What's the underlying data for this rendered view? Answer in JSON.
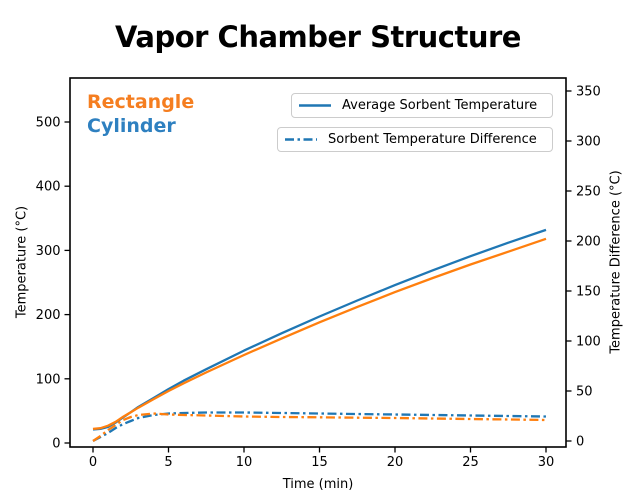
{
  "figure": {
    "background": "#ffffff"
  },
  "chart_data": {
    "type": "line",
    "title": "Vapor Chamber Structure",
    "xlabel": "Time (min)",
    "ylabel_left": "Temperature (°C)",
    "ylabel_right": "Temperature Difference (°C)",
    "x_ticks": [
      0,
      5,
      10,
      15,
      20,
      25,
      30
    ],
    "y_ticks_left": [
      0,
      100,
      200,
      300,
      400,
      500
    ],
    "y_ticks_right": [
      0,
      50,
      100,
      150,
      200,
      250,
      300,
      350
    ],
    "xlim": [
      -1.5,
      31.5
    ],
    "ylim_left": [
      -6,
      568
    ],
    "ylim_right": [
      -6,
      363
    ],
    "grid": false,
    "legend_position": "upper center",
    "legend": [
      "Average Sorbent Temperature",
      "Sorbent Temperature Difference"
    ],
    "legend_line_color": "#1f77b4",
    "annotations": [
      {
        "text": "Rectangle",
        "color": "#f57e20"
      },
      {
        "text": "Cylinder",
        "color": "#2e80c0"
      }
    ],
    "colors": {
      "cylinder": "#1f77b4",
      "rectangle": "#ff7f0e"
    },
    "x": [
      0,
      0.5,
      1,
      1.5,
      2,
      2.5,
      3,
      4,
      5,
      6,
      7.5,
      10,
      12.5,
      15,
      17.5,
      20,
      22.5,
      25,
      27.5,
      30
    ],
    "series": [
      {
        "name": "Cylinder Average Sorbent Temperature",
        "group": "Cylinder",
        "measure": "Average Sorbent Temperature",
        "axis": "left",
        "style": "solid",
        "color": "#1f77b4",
        "values": [
          21,
          22,
          25,
          32,
          40,
          48,
          56,
          70,
          84,
          97,
          115,
          144,
          171,
          197,
          222,
          246,
          269,
          291,
          312,
          332
        ]
      },
      {
        "name": "Rectangle Average Sorbent Temperature",
        "group": "Rectangle",
        "measure": "Average Sorbent Temperature",
        "axis": "left",
        "style": "solid",
        "color": "#ff7f0e",
        "values": [
          22,
          23,
          27,
          33,
          41,
          48,
          55,
          68,
          81,
          93,
          110,
          137,
          163,
          188,
          212,
          235,
          257,
          278,
          298,
          318
        ]
      },
      {
        "name": "Cylinder Sorbent Temperature Difference",
        "group": "Cylinder",
        "measure": "Sorbent Temperature Difference",
        "axis": "right",
        "style": "dashdot",
        "color": "#1f77b4",
        "values": [
          0,
          4,
          8,
          13,
          17,
          20,
          23,
          26,
          27.5,
          28,
          28.5,
          28.5,
          28,
          27.5,
          27,
          26.5,
          26,
          25.5,
          25,
          24.5
        ]
      },
      {
        "name": "Rectangle Sorbent Temperature Difference",
        "group": "Rectangle",
        "measure": "Sorbent Temperature Difference",
        "axis": "right",
        "style": "dashdot",
        "color": "#ff7f0e",
        "values": [
          0,
          5,
          11,
          16,
          21,
          24,
          26,
          27.5,
          26.5,
          26,
          25.5,
          24.5,
          24,
          23.7,
          23.3,
          23,
          22.5,
          22,
          21.5,
          21
        ]
      }
    ]
  }
}
